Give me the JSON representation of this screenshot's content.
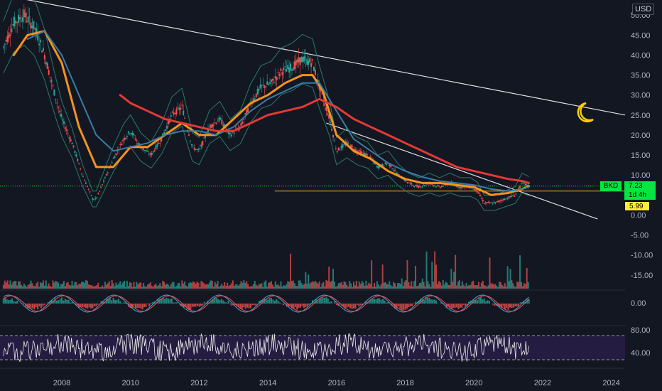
{
  "currency": "USD",
  "symbol": "BKD",
  "price_label": "7.23",
  "countdown": "1d 4h",
  "support_label": "5.99",
  "colors": {
    "background": "#131722",
    "candle_up": "#26a69a",
    "candle_down": "#ef5350",
    "ma_fast": "#f7931a",
    "ma_mid": "#3a7ca5",
    "ma_slow": "#e53935",
    "bollinger": "#2a7a6a",
    "trendline": "#e0e0e0",
    "support_line": "#f5a623",
    "price_line": "#00e640",
    "macd_line": "#4aa3df",
    "signal_line": "#ef5350",
    "rsi": "#e8e8e8",
    "rsi_band": "#2b1f4a",
    "moon": "#ffcc00"
  },
  "icons": {
    "moon": "crescent-moon-icon"
  },
  "chart_data": [
    {
      "type": "candlestick",
      "title": "",
      "x_ticks": [
        "2008",
        "2010",
        "2012",
        "2014",
        "2016",
        "2018",
        "2020",
        "2022",
        "2024"
      ],
      "y_ticks": [
        "50.00",
        "45.00",
        "40.00",
        "35.00",
        "30.00",
        "25.00",
        "20.00",
        "15.00",
        "10.00",
        "5.00",
        "0.00",
        "-5.00",
        "-10.00",
        "-15.00"
      ],
      "ylim": [
        -17,
        52
      ],
      "xlim": [
        2006.2,
        2024.4
      ],
      "grid": false,
      "price_series": {
        "name": "BKD",
        "x": [
          2006.3,
          2006.6,
          2006.9,
          2007.2,
          2007.5,
          2007.8,
          2008.0,
          2008.3,
          2008.6,
          2008.9,
          2009.0,
          2009.2,
          2009.5,
          2009.8,
          2010.0,
          2010.3,
          2010.6,
          2010.9,
          2011.2,
          2011.5,
          2011.8,
          2012.0,
          2012.3,
          2012.6,
          2012.9,
          2013.2,
          2013.5,
          2013.8,
          2014.1,
          2014.4,
          2014.7,
          2015.0,
          2015.3,
          2015.5,
          2015.8,
          2016.0,
          2016.3,
          2016.6,
          2016.9,
          2017.2,
          2017.5,
          2017.8,
          2018.1,
          2018.4,
          2018.7,
          2019.0,
          2019.3,
          2019.6,
          2019.9,
          2020.1,
          2020.3,
          2020.6,
          2020.9,
          2021.2,
          2021.4,
          2021.6
        ],
        "values": [
          42,
          48,
          50,
          47,
          40,
          30,
          24,
          18,
          10,
          4,
          4,
          8,
          14,
          19,
          21,
          17,
          15,
          19,
          25,
          27,
          17,
          16,
          22,
          24,
          20,
          22,
          28,
          32,
          33,
          36,
          37,
          39,
          38,
          32,
          24,
          16,
          18,
          16,
          15,
          12,
          13,
          10,
          8,
          7,
          8,
          7,
          8,
          7,
          7,
          6,
          3,
          3,
          4,
          5,
          8,
          7.23
        ]
      },
      "moving_averages": [
        {
          "x": [
            2006.6,
            2007.0,
            2007.5,
            2008.0,
            2008.5,
            2009.0,
            2009.5,
            2010.0,
            2010.5,
            2011.0,
            2011.5,
            2012.0,
            2012.5,
            2013.0,
            2013.5,
            2014.0,
            2014.5,
            2015.0,
            2015.3,
            2015.6,
            2016.0,
            2016.5,
            2017.0,
            2017.5,
            2018.0,
            2018.5,
            2019.0,
            2019.5,
            2020.0,
            2020.5,
            2021.0,
            2021.4,
            2021.6
          ],
          "values": [
            40,
            45,
            46,
            38,
            22,
            12,
            12,
            17,
            17,
            20,
            23,
            20,
            20,
            24,
            28,
            30,
            33,
            35,
            35,
            31,
            20,
            16,
            14,
            11,
            9,
            8,
            8,
            7.5,
            7,
            5,
            5.5,
            6.5,
            7.2
          ]
        },
        {
          "x": [
            2007.0,
            2007.5,
            2008.0,
            2008.5,
            2009.0,
            2009.5,
            2010.0,
            2010.5,
            2011.0,
            2011.5,
            2012.0,
            2012.5,
            2013.0,
            2013.5,
            2014.0,
            2014.5,
            2015.0,
            2015.5,
            2016.0,
            2016.5,
            2017.0,
            2017.5,
            2018.0,
            2018.5,
            2019.0,
            2019.5,
            2020.0,
            2020.5,
            2021.0,
            2021.4,
            2021.6
          ],
          "values": [
            44,
            46,
            40,
            30,
            20,
            16,
            17,
            18,
            20,
            21,
            21,
            20,
            22,
            26,
            29,
            31,
            33,
            33,
            26,
            19,
            16,
            13,
            11,
            9.5,
            8.5,
            8,
            7.5,
            6.5,
            6,
            6.5,
            7
          ]
        },
        {
          "x": [
            2009.7,
            2010.0,
            2010.5,
            2011.0,
            2011.5,
            2012.0,
            2012.5,
            2013.0,
            2013.5,
            2014.0,
            2014.5,
            2015.0,
            2015.5,
            2016.0,
            2016.5,
            2017.0,
            2017.5,
            2018.0,
            2018.5,
            2019.0,
            2019.5,
            2020.0,
            2020.5,
            2021.0,
            2021.4,
            2021.6
          ],
          "values": [
            30,
            28,
            26,
            24,
            23,
            22,
            21,
            21,
            23,
            25,
            26,
            27,
            29,
            27,
            24,
            22,
            20,
            18,
            16,
            14,
            12,
            11,
            10,
            9,
            8.5,
            8
          ]
        }
      ],
      "trendlines": [
        {
          "x": [
            2006.9,
            2024.4
          ],
          "values": [
            54,
            25
          ]
        },
        {
          "x": [
            2015.7,
            2023.6
          ],
          "values": [
            23,
            -1
          ]
        }
      ],
      "support": {
        "x": [
          2014.2,
          2024.4
        ],
        "value": 5.99
      },
      "price_line": 7.23
    },
    {
      "type": "bar",
      "title": "Volume",
      "note": "volume histogram drawn beneath price panel"
    },
    {
      "type": "line",
      "title": "",
      "y_ticks": [
        "0.00"
      ]
    },
    {
      "type": "line",
      "title": "",
      "y_ticks": [
        "80.00",
        "40.00"
      ],
      "bands": [
        70,
        30
      ]
    }
  ]
}
